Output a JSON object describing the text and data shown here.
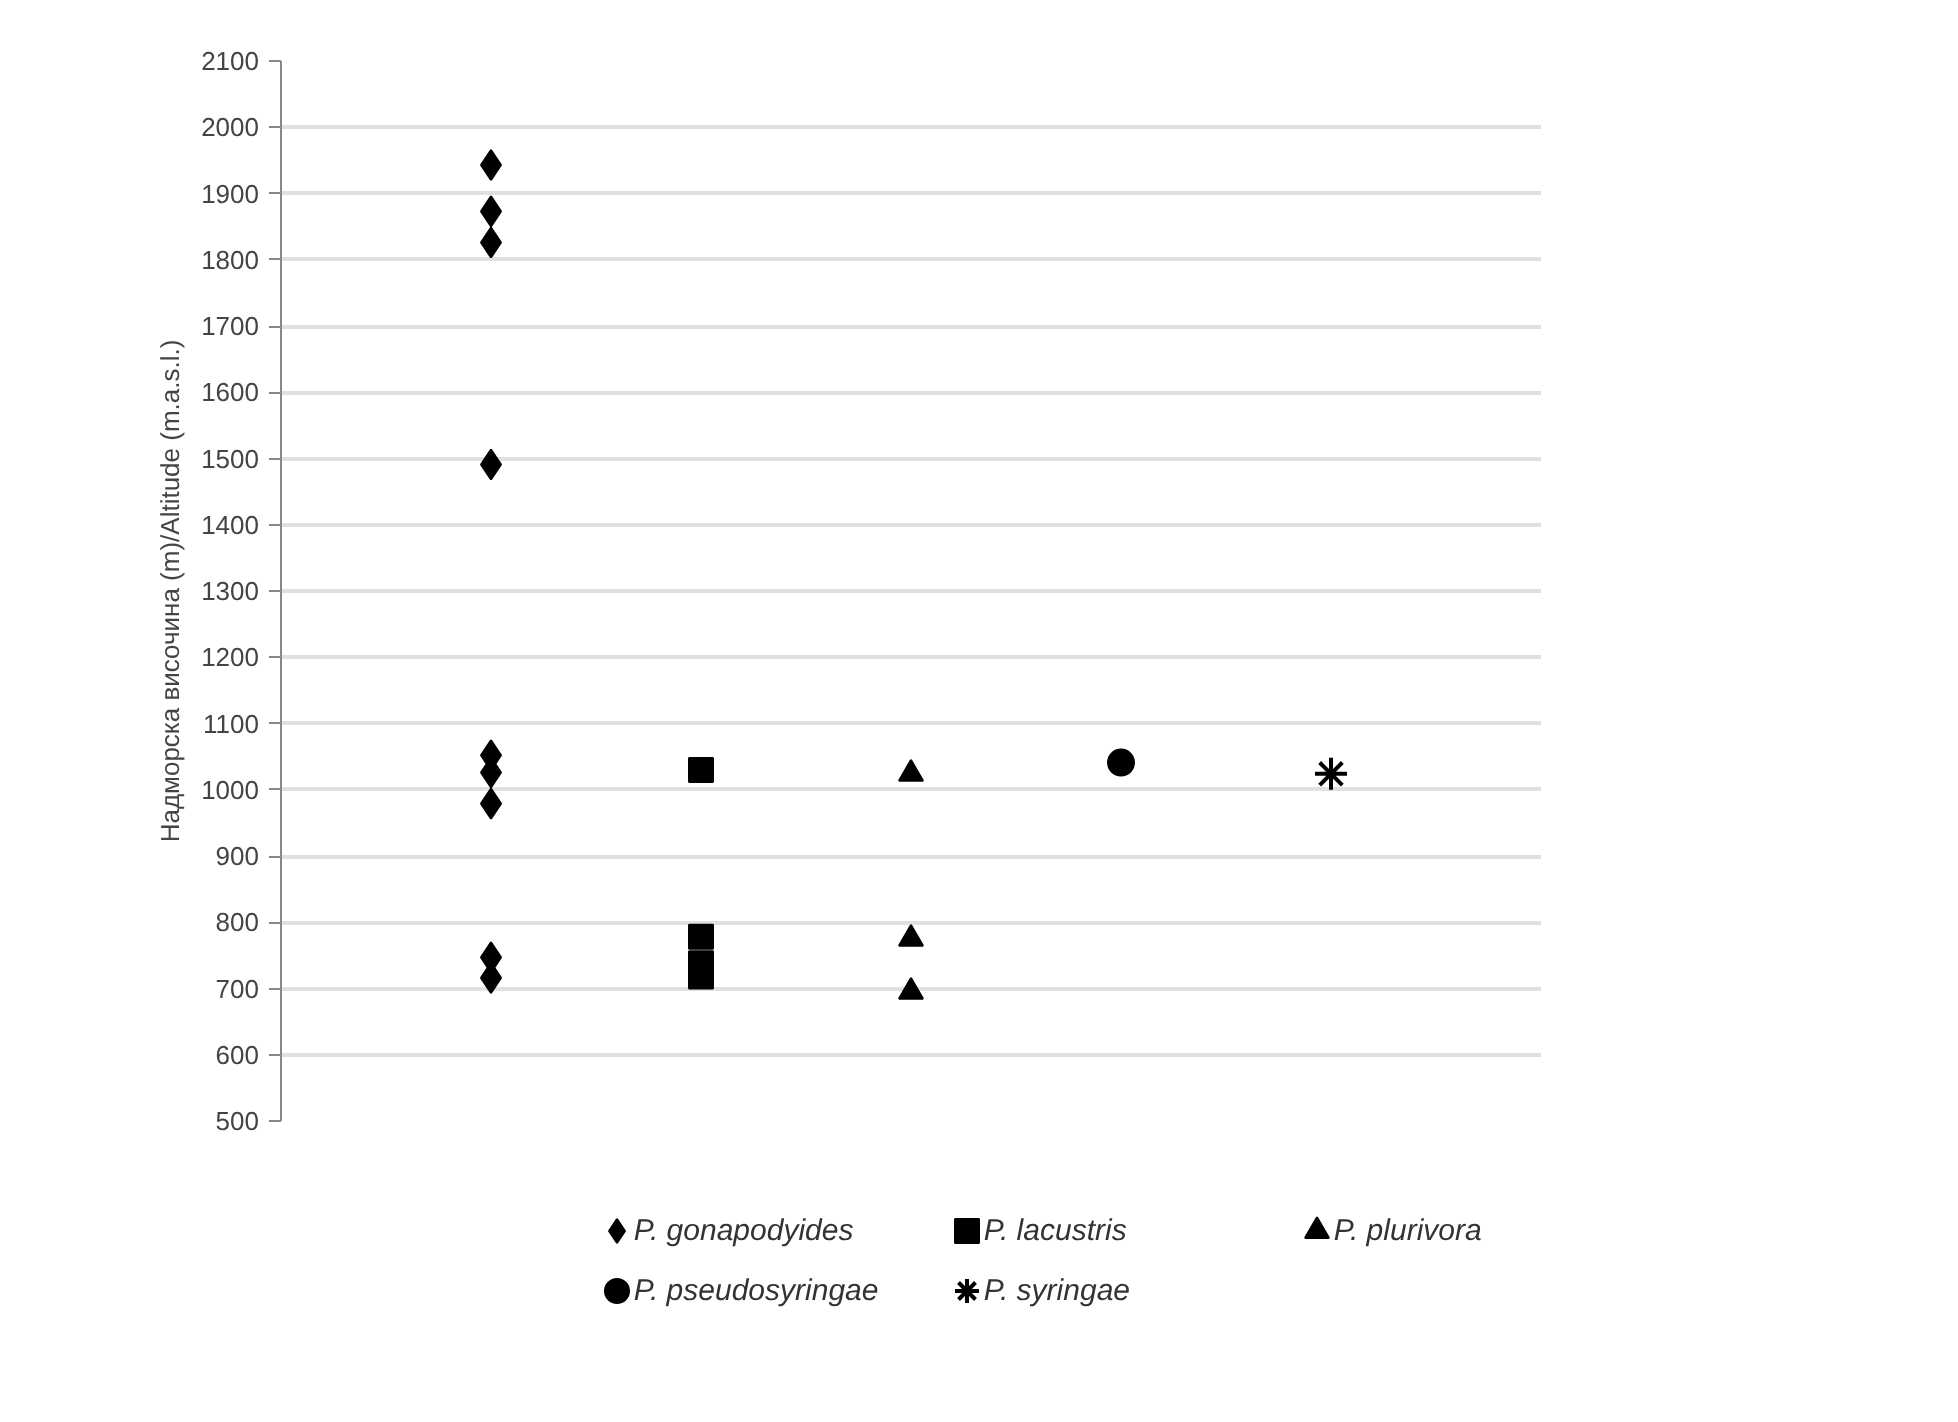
{
  "chart_data": {
    "type": "scatter",
    "ylabel": "Надморска височина (m)/Altitude (m.a.s.l.)",
    "categories": [
      null,
      null,
      null,
      null,
      null
    ],
    "ylim": [
      500,
      2100
    ],
    "yticks": [
      500,
      600,
      700,
      800,
      900,
      1000,
      1100,
      1200,
      1300,
      1400,
      1500,
      1600,
      1700,
      1800,
      1900,
      2000,
      2100
    ],
    "grid": "y",
    "legend": "bottom",
    "series": [
      {
        "name": "P. gonapodyides",
        "color": "#000000",
        "marker": "diamond",
        "values": [
          1943,
          null,
          null,
          null,
          null
        ]
      },
      {
        "color": "#000000",
        "marker": "diamond",
        "values": [
          1873,
          null,
          null,
          null,
          null
        ]
      },
      {
        "color": "#000000",
        "marker": "diamond",
        "values": [
          1826,
          null,
          null,
          null,
          null
        ]
      },
      {
        "color": "#000000",
        "marker": "diamond",
        "values": [
          1491,
          null,
          null,
          null,
          null
        ]
      },
      {
        "color": "#000000",
        "marker": "diamond",
        "values": [
          1052,
          null,
          null,
          null,
          null
        ]
      },
      {
        "color": "#000000",
        "marker": "diamond",
        "values": [
          1026,
          null,
          null,
          null,
          null
        ]
      },
      {
        "color": "#000000",
        "marker": "diamond",
        "values": [
          979,
          null,
          null,
          null,
          null
        ]
      },
      {
        "color": "#000000",
        "marker": "diamond",
        "values": [
          747,
          null,
          null,
          null,
          null
        ]
      },
      {
        "color": "#000000",
        "marker": "diamond",
        "values": [
          716,
          null,
          null,
          null,
          null
        ]
      },
      {
        "name": "P. lacustris",
        "color": "#000000",
        "marker": "square",
        "values": [
          null,
          1030,
          null,
          null,
          null
        ]
      },
      {
        "color": "#000000",
        "marker": "square",
        "values": [
          null,
          778,
          null,
          null,
          null
        ]
      },
      {
        "color": "#000000",
        "marker": "square",
        "values": [
          null,
          738,
          null,
          null,
          null
        ]
      },
      {
        "color": "#000000",
        "marker": "square",
        "values": [
          null,
          718,
          null,
          null,
          null
        ]
      },
      {
        "name": "P. plurivora",
        "color": "#000000",
        "marker": "triangle",
        "values": [
          null,
          null,
          1024,
          null,
          null
        ]
      },
      {
        "color": "#000000",
        "marker": "triangle",
        "values": [
          null,
          null,
          775,
          null,
          null
        ]
      },
      {
        "color": "#000000",
        "marker": "triangle",
        "values": [
          null,
          null,
          695,
          null,
          null
        ]
      },
      {
        "name": "P. pseudosyringae",
        "color": "#000000",
        "marker": "circle",
        "values": [
          null,
          null,
          null,
          1041,
          null
        ]
      },
      {
        "name": "P. syringae",
        "color": "#000000",
        "marker": "cross",
        "values": [
          null,
          null,
          null,
          null,
          1024
        ]
      }
    ]
  }
}
